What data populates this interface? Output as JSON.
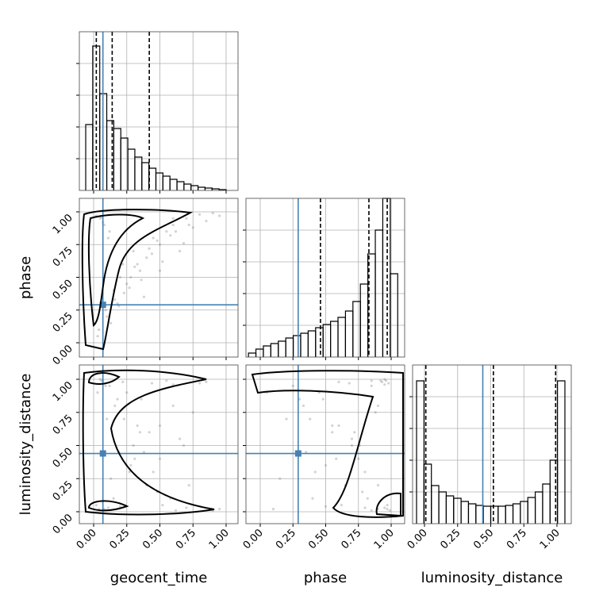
{
  "chart_data": {
    "type": "corner",
    "grid": true,
    "truth_color": "#4682b4",
    "point_color": "#808080",
    "parameters": [
      {
        "name": "geocent_time",
        "truth": 0.07,
        "quantiles": [
          0.02,
          0.14,
          0.42
        ],
        "lim": [
          -0.108,
          1.09
        ],
        "hist_ylim": [
          0,
          200
        ],
        "ticks": [
          {
            "value": 0,
            "label": "0.00"
          },
          {
            "value": 0.25,
            "label": "0.25"
          },
          {
            "value": 0.5,
            "label": "0.50"
          },
          {
            "value": 0.75,
            "label": "0.75"
          },
          {
            "value": 1,
            "label": "1.00"
          }
        ],
        "bins": [
          -0.06,
          -0.007,
          0.046,
          0.099,
          0.152,
          0.205,
          0.258,
          0.311,
          0.364,
          0.417,
          0.47,
          0.523,
          0.576,
          0.629,
          0.682,
          0.735,
          0.788,
          0.841,
          0.894,
          0.947,
          1.0
        ],
        "counts": [
          83,
          182,
          122,
          88,
          78,
          66,
          52,
          42,
          35,
          28,
          22,
          18,
          14,
          11,
          8,
          6,
          4,
          3,
          2,
          1
        ]
      },
      {
        "name": "phase",
        "truth": 0.29,
        "quantiles": [
          0.46,
          0.83,
          0.97
        ],
        "lim": [
          -0.109,
          1.103
        ],
        "hist_ylim": [
          0,
          200
        ],
        "ticks": [
          {
            "value": 0,
            "label": "0.00"
          },
          {
            "value": 0.25,
            "label": "0.25"
          },
          {
            "value": 0.5,
            "label": "0.50"
          },
          {
            "value": 0.75,
            "label": "0.75"
          },
          {
            "value": 1,
            "label": "1.00"
          }
        ],
        "bins": [
          -0.09,
          -0.033,
          0.024,
          0.081,
          0.138,
          0.195,
          0.252,
          0.309,
          0.366,
          0.423,
          0.48,
          0.537,
          0.594,
          0.651,
          0.708,
          0.765,
          0.822,
          0.879,
          0.936,
          0.993,
          1.05
        ],
        "counts": [
          5,
          10,
          14,
          17,
          20,
          24,
          27,
          30,
          33,
          37,
          41,
          45,
          50,
          58,
          70,
          92,
          130,
          160,
          200,
          105
        ]
      },
      {
        "name": "luminosity_distance",
        "truth": 0.44,
        "quantiles": [
          0.01,
          0.52,
          0.99
        ],
        "lim": [
          -0.09,
          1.108
        ],
        "hist_ylim": [
          0,
          200
        ],
        "ticks": [
          {
            "value": 0,
            "label": "0.00"
          },
          {
            "value": 0.25,
            "label": "0.25"
          },
          {
            "value": 0.5,
            "label": "0.50"
          },
          {
            "value": 0.75,
            "label": "0.75"
          },
          {
            "value": 1,
            "label": "1.00"
          }
        ],
        "bins": [
          -0.06,
          -0.004,
          0.052,
          0.108,
          0.164,
          0.22,
          0.276,
          0.332,
          0.388,
          0.444,
          0.5,
          0.556,
          0.612,
          0.668,
          0.724,
          0.78,
          0.836,
          0.892,
          0.948,
          1.004,
          1.06
        ],
        "counts": [
          180,
          75,
          48,
          40,
          35,
          32,
          28,
          25,
          23,
          22,
          22,
          22,
          23,
          25,
          28,
          33,
          40,
          50,
          80,
          180
        ]
      }
    ],
    "samples": [
      [
        0.05,
        0.08,
        0.12,
        0.02,
        0.3,
        0.45,
        0.6,
        0.22,
        0.15,
        0.35,
        0.5,
        0.7,
        0.8,
        0.1,
        0.04,
        0.25,
        0.4,
        0.55,
        0.65,
        0.9,
        0.18,
        0.28,
        0.33,
        0.07,
        0.48,
        0.75,
        0.38,
        0.2,
        0.6,
        0.13,
        0.03,
        0.42,
        0.52,
        0.85,
        0.27,
        0.09,
        0.16,
        0.58,
        0.68,
        0.95,
        0.23,
        0.31,
        0.44,
        0.11,
        0.36,
        0.72,
        0.06,
        0.5,
        0.62,
        0.19
      ],
      [
        0.95,
        0.9,
        0.85,
        0.97,
        0.7,
        0.8,
        0.9,
        0.6,
        0.4,
        0.55,
        0.75,
        0.95,
        0.98,
        0.2,
        0.1,
        0.45,
        0.65,
        0.85,
        0.7,
        0.99,
        0.3,
        0.5,
        0.6,
        0.92,
        0.78,
        0.88,
        0.35,
        0.5,
        0.95,
        0.15,
        0.05,
        0.72,
        0.62,
        0.93,
        0.42,
        0.25,
        0.33,
        0.82,
        0.76,
        0.97,
        0.38,
        0.58,
        0.68,
        0.8,
        0.48,
        0.9,
        0.96,
        0.55,
        0.85,
        0.28
      ],
      [
        1.0,
        0.02,
        0.95,
        0.05,
        0.5,
        0.3,
        0.8,
        0.98,
        0.1,
        0.6,
        0.4,
        0.03,
        0.97,
        0.7,
        0.02,
        0.9,
        0.2,
        0.99,
        0.55,
        0.01,
        0.85,
        0.35,
        0.65,
        0.99,
        0.15,
        0.75,
        0.45,
        0.04,
        0.96,
        0.25,
        0.9,
        0.6,
        0.05,
        0.98,
        0.3,
        0.95,
        0.8,
        0.1,
        0.5,
        0.02,
        0.7,
        0.4,
        0.97,
        0.03,
        0.85,
        0.2,
        0.99,
        0.65,
        0.01,
        0.45
      ]
    ]
  }
}
